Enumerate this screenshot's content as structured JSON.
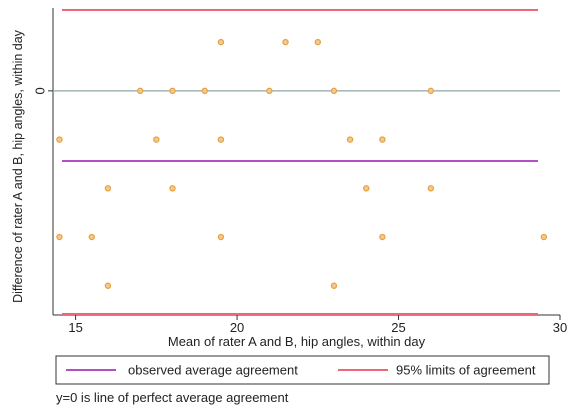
{
  "chart_data": {
    "type": "scatter",
    "xlabel": "Mean of rater A and B, hip angles, within day",
    "ylabel": "Difference of rater A and B, hip angles, within day",
    "xlim": [
      14.3,
      30.0
    ],
    "ylim": [
      -4.6,
      1.7
    ],
    "x_ticks": [
      15,
      20,
      25,
      30
    ],
    "y_ticks": [
      0
    ],
    "grid": false,
    "legend_position": "bottom",
    "series": [
      {
        "kind": "points",
        "color": "#e8a040",
        "x": [
          19.5,
          21.5,
          22.5,
          17,
          18,
          19,
          21,
          23,
          26,
          14.5,
          17.5,
          19.5,
          23.5,
          24.5,
          16,
          18,
          24,
          26,
          14.5,
          15.5,
          19.5,
          24.5,
          29.5,
          16,
          23
        ],
        "y": [
          1,
          1,
          1,
          0,
          0,
          0,
          0,
          0,
          0,
          -1,
          -1,
          -1,
          -1,
          -1,
          -2,
          -2,
          -2,
          -2,
          -3,
          -3,
          -3,
          -3,
          -3,
          -4,
          -4
        ]
      }
    ],
    "reference_lines": [
      {
        "name": "observed average agreement",
        "y": -1.44,
        "color": "#b24fc4"
      },
      {
        "name": "95% limits of agreement",
        "y": 1.66,
        "color": "#ee6677"
      },
      {
        "name": "95% limits of agreement",
        "y": -4.58,
        "color": "#ee6677"
      },
      {
        "name": "",
        "y": 0,
        "color": "#8fa6a6"
      }
    ],
    "legend": [
      {
        "label": "observed average agreement",
        "color": "#b24fc4"
      },
      {
        "label": "95% limits of agreement",
        "color": "#ee6677"
      }
    ],
    "note": "y=0 is line of perfect average agreement"
  }
}
